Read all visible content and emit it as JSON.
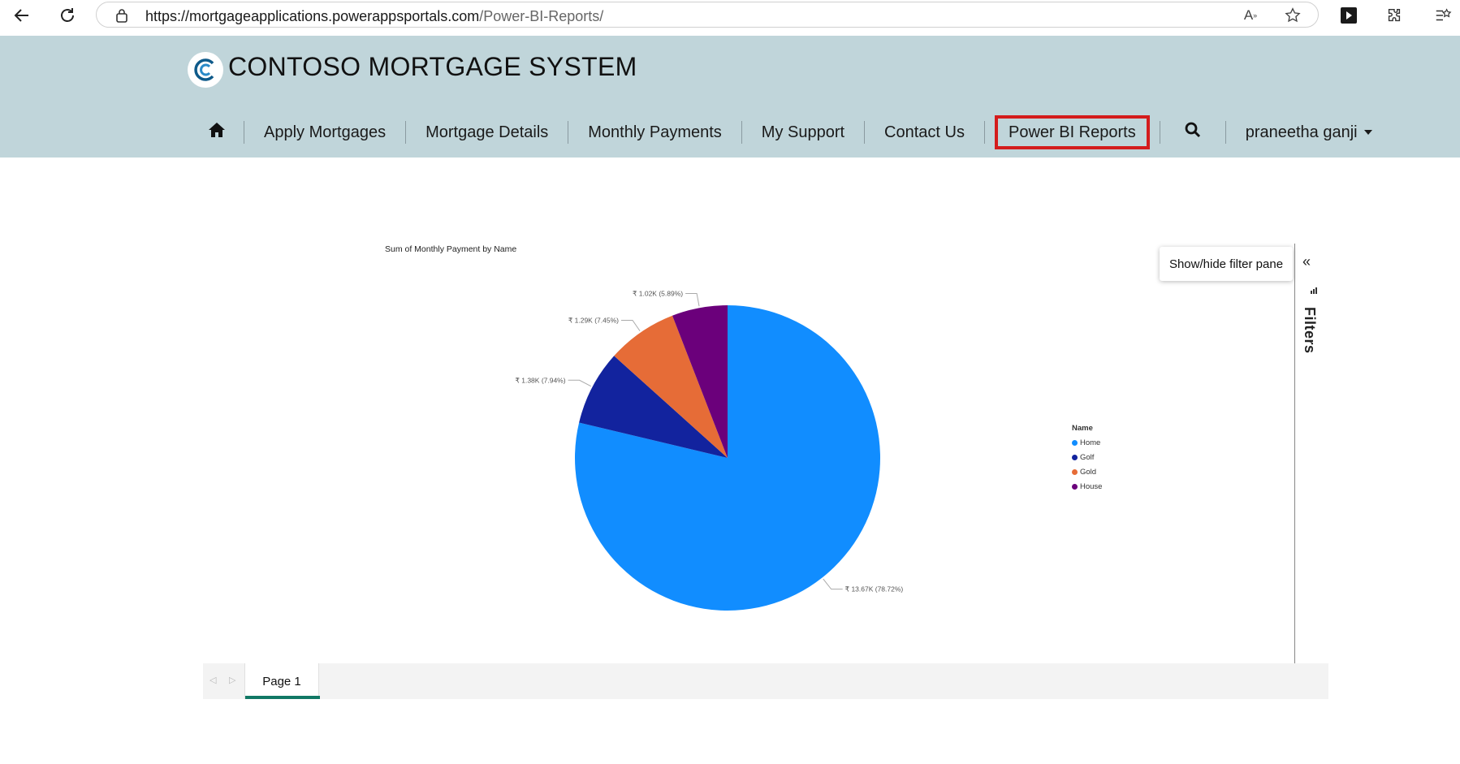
{
  "browser": {
    "url_host": "https://mortgageapplications.powerappsportals.com",
    "url_path": "/Power-BI-Reports/"
  },
  "header": {
    "title": "CONTOSO MORTGAGE SYSTEM"
  },
  "nav": {
    "items": [
      "Apply Mortgages",
      "Mortgage Details",
      "Monthly Payments",
      "My Support",
      "Contact Us",
      "Power BI Reports"
    ],
    "user": "praneetha ganji"
  },
  "report": {
    "tooltip": "Show/hide filter pane",
    "filters_label": "Filters",
    "page_tab": "Page 1"
  },
  "chart_data": {
    "type": "pie",
    "title": "Sum of Monthly Payment by Name",
    "legend_title": "Name",
    "legend_position": "right",
    "slices": [
      {
        "name": "Home",
        "value": 13.67,
        "unit": "K",
        "percent": 78.72,
        "label": "₹ 13.67K (78.72%)",
        "color": "#118dff"
      },
      {
        "name": "Golf",
        "value": 1.38,
        "unit": "K",
        "percent": 7.94,
        "label": "₹ 1.38K (7.94%)",
        "color": "#12239e"
      },
      {
        "name": "Gold",
        "value": 1.29,
        "unit": "K",
        "percent": 7.45,
        "label": "₹ 1.29K (7.45%)",
        "color": "#e66c37"
      },
      {
        "name": "House",
        "value": 1.02,
        "unit": "K",
        "percent": 5.89,
        "label": "₹ 1.02K (5.89%)",
        "color": "#6b007b"
      }
    ]
  }
}
